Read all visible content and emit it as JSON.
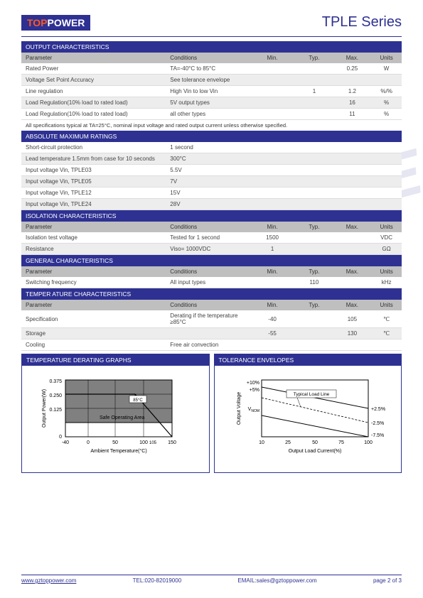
{
  "logo": {
    "pre": "TOP",
    "post": "POWER"
  },
  "series": "TPLE Series",
  "watermark": "TOPPOWER",
  "sections": {
    "output": {
      "title": "OUTPUT CHARACTERISTICS",
      "headers": [
        "Parameter",
        "Conditions",
        "Min.",
        "Typ.",
        "Max.",
        "Units"
      ],
      "rows": [
        [
          "Rated Power",
          "TA=-40°C to 85°C",
          "",
          "",
          "0.25",
          "W"
        ],
        [
          "Voltage Set Point Accuracy",
          "See tolerance envelope",
          "",
          "",
          "",
          ""
        ],
        [
          "Line regulation",
          "High Vin to low Vin",
          "",
          "1",
          "1.2",
          "%/%"
        ],
        [
          "Load Regulation(10% load to rated load)",
          "5V output types",
          "",
          "",
          "16",
          "%"
        ],
        [
          "Load Regulation(10% load to rated load)",
          "all other types",
          "",
          "",
          "11",
          "%"
        ]
      ],
      "note": "All specifications typical at TA=25°C, nominal input voltage and rated output current unless otherwise specified."
    },
    "absmax": {
      "title": "ABSOLUTE MAXIMUM RATINGS",
      "rows": [
        [
          "Short-circuit protection",
          "1 second"
        ],
        [
          "Lead temperature 1.5mm from case for 10 seconds",
          "300°C"
        ],
        [
          "Input voltage Vin, TPLE03",
          "5.5V"
        ],
        [
          "Input voltage Vin, TPLE05",
          "7V"
        ],
        [
          "Input voltage Vin, TPLE12",
          "15V"
        ],
        [
          "Input voltage Vin, TPLE24",
          "28V"
        ]
      ]
    },
    "isolation": {
      "title": "ISOLATION CHARACTERISTICS",
      "headers": [
        "Parameter",
        "Conditions",
        "Min.",
        "Typ.",
        "Max.",
        "Units"
      ],
      "rows": [
        [
          "Isolation test voltage",
          "Tested for 1 second",
          "1500",
          "",
          "",
          "VDC"
        ],
        [
          "Resistance",
          "Viso= 1000VDC",
          "1",
          "",
          "",
          "GΩ"
        ]
      ]
    },
    "general": {
      "title": "GENERAL CHARACTERISTICS",
      "headers": [
        "Parameter",
        "Conditions",
        "Min.",
        "Typ.",
        "Max.",
        "Units"
      ],
      "rows": [
        [
          "Switching frequency",
          "All input types",
          "",
          "110",
          "",
          "kHz"
        ]
      ]
    },
    "temp": {
      "title": "TEMPER ATURE CHARACTERISTICS",
      "headers": [
        "Parameter",
        "Conditions",
        "Min.",
        "Typ.",
        "Max.",
        "Units"
      ],
      "rows": [
        [
          "Specification",
          "Derating if the temperature ≥85°C",
          "-40",
          "",
          "105",
          "℃"
        ],
        [
          "Storage",
          "",
          "-55",
          "",
          "130",
          "℃"
        ],
        [
          "Cooling",
          "Free air convection",
          "",
          "",
          "",
          ""
        ]
      ]
    }
  },
  "graph1": {
    "title": "TEMPERATURE DERATING GRAPHS",
    "ylabel": "Output Power(W)",
    "xlabel": "Ambient Temperature(°C)",
    "yticks": [
      "0",
      "0.125",
      "0.250",
      "0.375"
    ],
    "xticks": [
      "-40",
      "0",
      "50",
      "100",
      "105",
      "150"
    ],
    "safe_area": "Safe Operating Area",
    "annotation": "85°C",
    "bg_color": "#808080",
    "grid_color": "#000000"
  },
  "graph2": {
    "title": "TOLERANCE ENVELOPES",
    "ylabel": "Output Voltage",
    "xlabel": "Output Load Current(%)",
    "yticks_left": [
      "+5%",
      "+10%"
    ],
    "ycenter": "V",
    "ycenter_sub": "NOM",
    "yticks_right": [
      "+2.5%",
      "-2.5%",
      "-7.5%"
    ],
    "xticks": [
      "10",
      "25",
      "50",
      "75",
      "100"
    ],
    "load_line": "Typical Load Line"
  },
  "footer": {
    "url": "www.gztoppower.com",
    "tel": "TEL:020-82019000",
    "email": "EMAIL:sales@gztoppower.com",
    "page": "page 2 of 3"
  }
}
